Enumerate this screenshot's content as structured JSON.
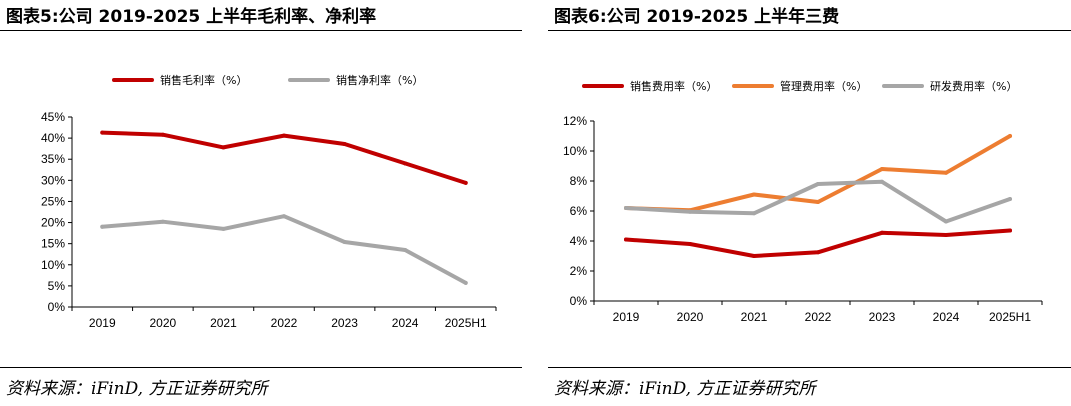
{
  "charts": [
    {
      "figure_title": "图表5:公司 2019-2025 上半年毛利率、净利率",
      "source": "资料来源：iFinD, 方正证券研究所",
      "chart_data": {
        "type": "line",
        "categories": [
          "2019",
          "2020",
          "2021",
          "2022",
          "2023",
          "2024",
          "2025H1"
        ],
        "ylim": [
          0,
          45
        ],
        "yticks": [
          0,
          5,
          10,
          15,
          20,
          25,
          30,
          35,
          40,
          45
        ],
        "ytick_labels": [
          "0%",
          "5%",
          "10%",
          "15%",
          "20%",
          "25%",
          "30%",
          "35%",
          "40%",
          "45%"
        ],
        "legend_position": "top",
        "grid": false,
        "series": [
          {
            "name": "销售毛利率（%）",
            "color": "#c00000",
            "values": [
              41.3,
              40.8,
              37.8,
              40.6,
              38.6,
              34.0,
              29.4
            ]
          },
          {
            "name": "销售净利率（%）",
            "color": "#a6a6a6",
            "values": [
              19.0,
              20.2,
              18.5,
              21.5,
              15.4,
              13.5,
              5.7
            ]
          }
        ]
      }
    },
    {
      "figure_title": "图表6:公司 2019-2025 上半年三费",
      "source": "资料来源：iFinD, 方正证券研究所",
      "chart_data": {
        "type": "line",
        "categories": [
          "2019",
          "2020",
          "2021",
          "2022",
          "2023",
          "2024",
          "2025H1"
        ],
        "ylim": [
          0,
          12
        ],
        "yticks": [
          0,
          2,
          4,
          6,
          8,
          10,
          12
        ],
        "ytick_labels": [
          "0%",
          "2%",
          "4%",
          "6%",
          "8%",
          "10%",
          "12%"
        ],
        "legend_position": "top",
        "grid": false,
        "series": [
          {
            "name": "销售费用率（%）",
            "color": "#c00000",
            "values": [
              4.1,
              3.8,
              3.0,
              3.25,
              4.55,
              4.4,
              4.7
            ]
          },
          {
            "name": "管理费用率（%）",
            "color": "#ed7d31",
            "values": [
              6.2,
              6.05,
              7.1,
              6.6,
              8.8,
              8.55,
              11.0
            ]
          },
          {
            "name": "研发费用率（%）",
            "color": "#a6a6a6",
            "values": [
              6.2,
              5.95,
              5.85,
              7.8,
              7.95,
              5.3,
              6.8
            ]
          }
        ]
      }
    }
  ]
}
